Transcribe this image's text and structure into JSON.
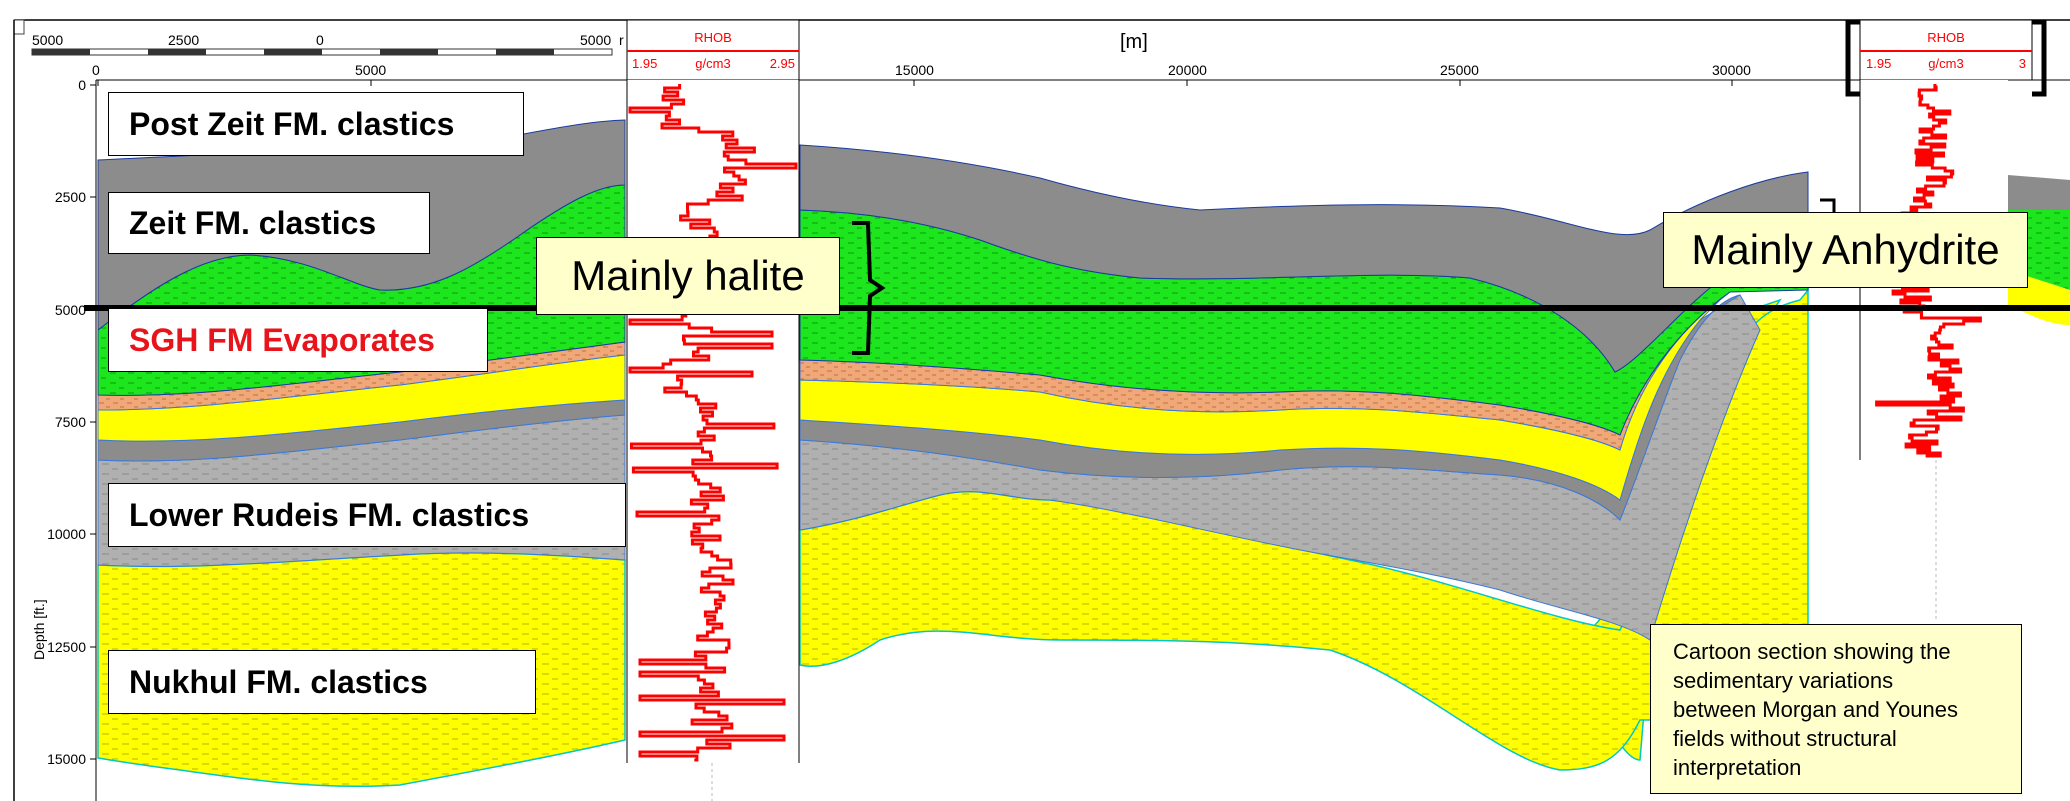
{
  "scale_bar": {
    "ticks": [
      "5000",
      "2500",
      "0",
      "5000"
    ],
    "unit_char": "r"
  },
  "x_axis": {
    "unit": "[m]",
    "ticks": [
      "0",
      "5000",
      "15000",
      "20000",
      "25000",
      "30000"
    ]
  },
  "y_axis": {
    "label": "Depth [ft.]",
    "ticks": [
      "0",
      "2500",
      "5000",
      "7500",
      "10000",
      "12500",
      "15000"
    ]
  },
  "log_left": {
    "name": "RHOB",
    "min": "1.95",
    "unit": "g/cm3",
    "max": "2.95",
    "curve_color": "#ff0000"
  },
  "log_right": {
    "name": "RHOB",
    "min": "1.95",
    "unit": "g/cm3",
    "max": "3",
    "curve_color": "#ff0000"
  },
  "formation_labels": {
    "post_zeit": "Post Zeit FM. clastics",
    "zeit": "Zeit FM. clastics",
    "sgh": "SGH FM Evaporates",
    "lower_rudeis": "Lower Rudeis FM. clastics",
    "nukhul": "Nukhul FM. clastics"
  },
  "callouts": {
    "halite": "Mainly halite",
    "anhydrite": "Mainly Anhydrite"
  },
  "caption": "Cartoon section showing the\nsedimentary variations\nbetween Morgan and Younes\nfields without structural\ninterpretation",
  "colors": {
    "gray_clastics": "#8c8c8c",
    "light_gray": "#b0b0b0",
    "green_evaporites": "#1ee61e",
    "orange": "#f0a878",
    "yellow": "#ffff00",
    "log_red": "#ff0000",
    "label_red": "#e8141b",
    "callout_fill": "#ffffcc"
  }
}
